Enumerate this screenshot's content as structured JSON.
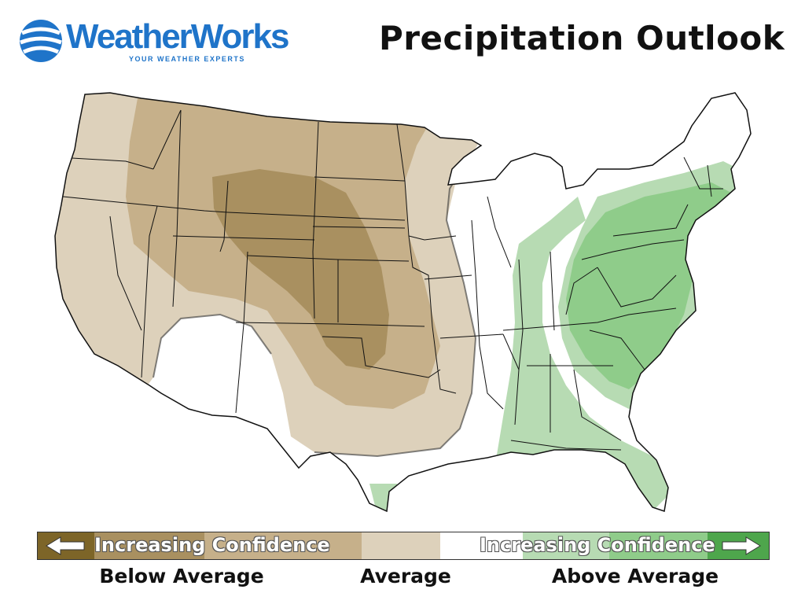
{
  "brand": {
    "name": "WeatherWorks",
    "tagline": "YOUR WEATHER EXPERTS",
    "color": "#1f74c9"
  },
  "title": "Precipitation Outlook",
  "legend": {
    "left_text": "Increasing Confidence",
    "right_text": "Increasing Confidence",
    "categories": [
      {
        "label": "Below Average",
        "color": "#a3884f"
      },
      {
        "label": "Average",
        "color": "#ffffff"
      },
      {
        "label": "Above Average",
        "color": "#5ba65b"
      }
    ],
    "swatches": [
      "#7d6528",
      "#a99060",
      "#c6b08a",
      "#ddd1bb",
      "#ffffff",
      "#b7dbb3",
      "#8fcc8a",
      "#4ea64c"
    ]
  },
  "outlook_zones": {
    "below_average": [
      "light",
      "medium",
      "dark"
    ],
    "above_average": [
      "light",
      "medium"
    ]
  }
}
